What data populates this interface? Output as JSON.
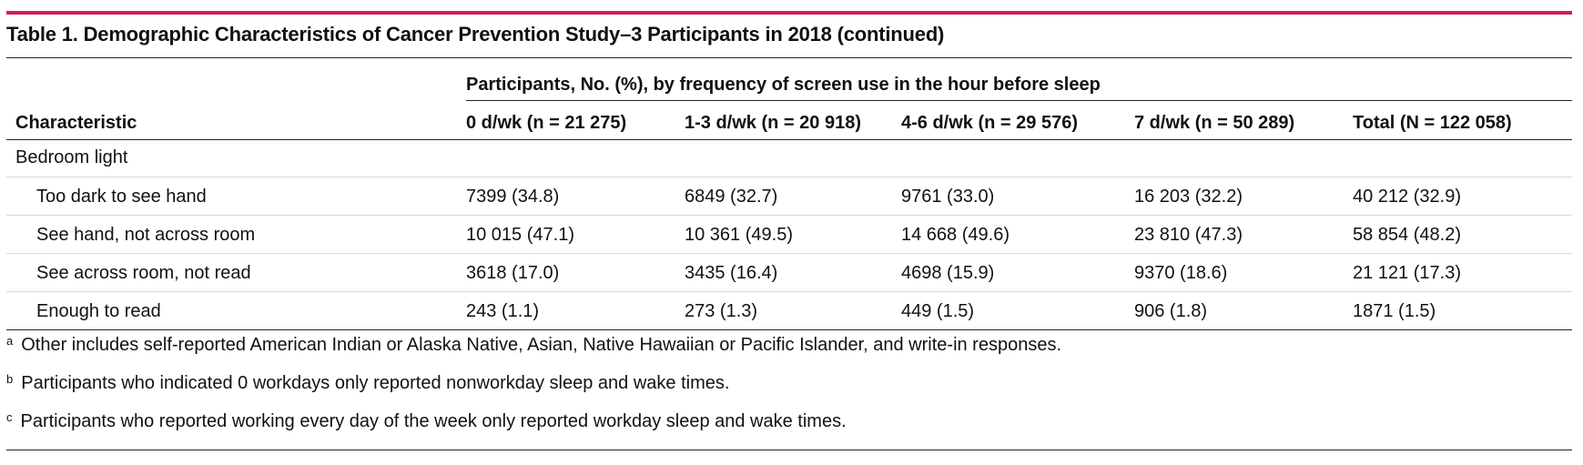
{
  "colors": {
    "accent_rule": "#d81b60",
    "rule": "#222222",
    "row_divider": "#d8d8d8"
  },
  "title": "Table 1. Demographic Characteristics of Cancer Prevention Study–3 Participants in 2018 (continued)",
  "spanner": "Participants, No. (%), by frequency of screen use in the hour before sleep",
  "columns": [
    "Characteristic",
    "0 d/wk (n = 21 275)",
    "1-3 d/wk (n = 20 918)",
    "4-6 d/wk (n = 29 576)",
    "7 d/wk (n = 50 289)",
    "Total (N = 122 058)"
  ],
  "group_label": "Bedroom light",
  "rows": [
    {
      "label": "Too dark to see hand",
      "values": [
        "7399 (34.8)",
        "6849 (32.7)",
        "9761 (33.0)",
        "16 203 (32.2)",
        "40 212 (32.9)"
      ]
    },
    {
      "label": "See hand, not across room",
      "values": [
        "10 015 (47.1)",
        "10 361 (49.5)",
        "14 668 (49.6)",
        "23 810 (47.3)",
        "58 854 (48.2)"
      ]
    },
    {
      "label": "See across room, not read",
      "values": [
        "3618 (17.0)",
        "3435 (16.4)",
        "4698 (15.9)",
        "9370 (18.6)",
        "21 121 (17.3)"
      ]
    },
    {
      "label": "Enough to read",
      "values": [
        "243 (1.1)",
        "273 (1.3)",
        "449 (1.5)",
        "906 (1.8)",
        "1871 (1.5)"
      ]
    }
  ],
  "footnotes": [
    {
      "mark": "a",
      "text": "Other includes self-reported American Indian or Alaska Native, Asian, Native Hawaiian or Pacific Islander, and write-in responses."
    },
    {
      "mark": "b",
      "text": "Participants who indicated 0 workdays only reported nonworkday sleep and wake times."
    },
    {
      "mark": "c",
      "text": "Participants who reported working every day of the week only reported workday sleep and wake times."
    }
  ]
}
